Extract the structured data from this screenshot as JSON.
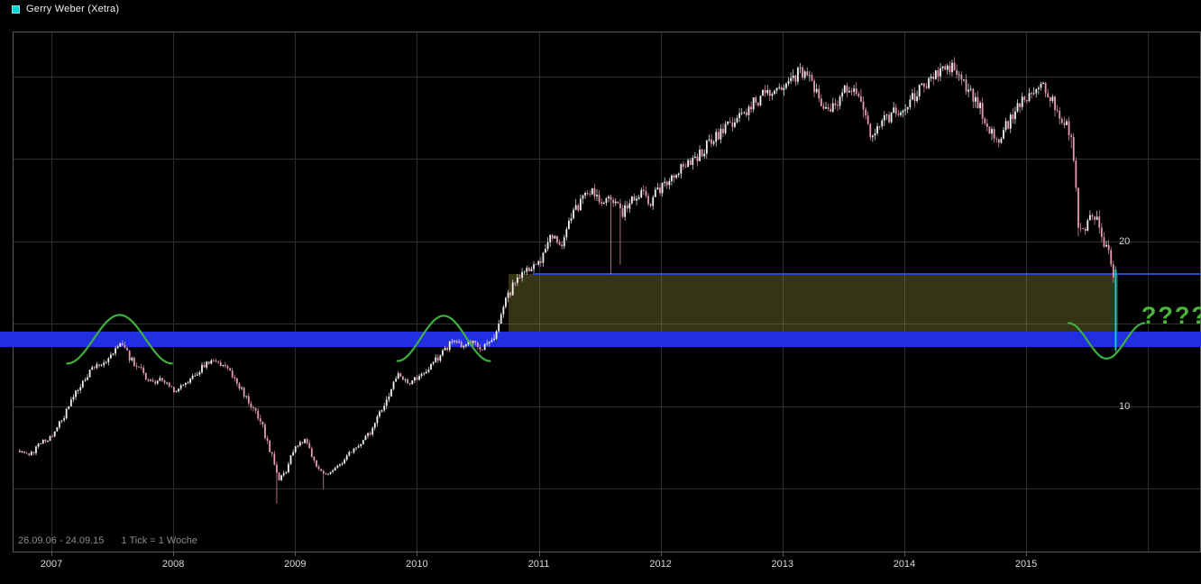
{
  "legend": {
    "label": "Gerry Weber (Xetra)",
    "marker_color": "#00d9d9"
  },
  "footer": {
    "range_text": "26.09.06 - 24.09.15",
    "tick_text": "1 Tick = 1 Woche"
  },
  "chart_data": {
    "type": "candlestick",
    "title": "Gerry Weber (Xetra)",
    "series_name": "Gerry Weber (Xetra)",
    "x_unit": "year",
    "tick_interval": "1 week",
    "x_domain": [
      2006.682,
      2016.435
    ],
    "y_domain": [
      1.2,
      32.73
    ],
    "x_ticks": [
      2007,
      2008,
      2009,
      2010,
      2011,
      2012,
      2013,
      2014,
      2015
    ],
    "x_gridlines": [
      2007,
      2008,
      2009,
      2010,
      2011,
      2012,
      2013,
      2014,
      2015,
      2016
    ],
    "y_gridlines": [
      5,
      10,
      15,
      20,
      25,
      30
    ],
    "y_tick_labels": [
      {
        "price": 20,
        "label": "20"
      },
      {
        "price": 10,
        "label": "10"
      }
    ],
    "weeks": 470,
    "t_first": 2006.74,
    "t_last": 2015.735,
    "anchors": [
      [
        2006.74,
        7.3
      ],
      [
        2006.82,
        7.0
      ],
      [
        2006.92,
        7.8
      ],
      [
        2007.0,
        8.1
      ],
      [
        2007.1,
        9.3
      ],
      [
        2007.22,
        11.0
      ],
      [
        2007.32,
        12.2
      ],
      [
        2007.45,
        12.8
      ],
      [
        2007.56,
        13.8
      ],
      [
        2007.62,
        13.2
      ],
      [
        2007.72,
        12.3
      ],
      [
        2007.82,
        11.4
      ],
      [
        2007.92,
        11.7
      ],
      [
        2008.0,
        10.9
      ],
      [
        2008.1,
        11.3
      ],
      [
        2008.22,
        12.3
      ],
      [
        2008.32,
        12.9
      ],
      [
        2008.42,
        12.4
      ],
      [
        2008.52,
        11.6
      ],
      [
        2008.62,
        10.3
      ],
      [
        2008.72,
        9.0
      ],
      [
        2008.8,
        7.2
      ],
      [
        2008.87,
        5.6
      ],
      [
        2008.93,
        6.2
      ],
      [
        2009.0,
        7.6
      ],
      [
        2009.08,
        7.9
      ],
      [
        2009.16,
        6.6
      ],
      [
        2009.24,
        5.9
      ],
      [
        2009.32,
        6.1
      ],
      [
        2009.42,
        7.0
      ],
      [
        2009.52,
        7.6
      ],
      [
        2009.62,
        8.4
      ],
      [
        2009.7,
        9.8
      ],
      [
        2009.78,
        11.0
      ],
      [
        2009.85,
        12.0
      ],
      [
        2009.93,
        11.4
      ],
      [
        2010.02,
        11.9
      ],
      [
        2010.12,
        12.5
      ],
      [
        2010.22,
        13.3
      ],
      [
        2010.3,
        14.0
      ],
      [
        2010.38,
        13.6
      ],
      [
        2010.46,
        13.9
      ],
      [
        2010.54,
        13.5
      ],
      [
        2010.62,
        14.1
      ],
      [
        2010.7,
        15.8
      ],
      [
        2010.78,
        17.2
      ],
      [
        2010.86,
        18.0
      ],
      [
        2010.94,
        18.4
      ],
      [
        2011.02,
        19.0
      ],
      [
        2011.1,
        20.3
      ],
      [
        2011.18,
        19.8
      ],
      [
        2011.28,
        21.5
      ],
      [
        2011.36,
        22.8
      ],
      [
        2011.44,
        23.1
      ],
      [
        2011.52,
        22.2
      ],
      [
        2011.6,
        22.6
      ],
      [
        2011.68,
        21.6
      ],
      [
        2011.76,
        22.4
      ],
      [
        2011.84,
        23.0
      ],
      [
        2011.92,
        22.4
      ],
      [
        2012.0,
        23.3
      ],
      [
        2012.1,
        23.8
      ],
      [
        2012.2,
        24.6
      ],
      [
        2012.3,
        25.2
      ],
      [
        2012.4,
        26.0
      ],
      [
        2012.5,
        26.6
      ],
      [
        2012.6,
        27.3
      ],
      [
        2012.7,
        28.0
      ],
      [
        2012.8,
        28.6
      ],
      [
        2012.9,
        29.2
      ],
      [
        2013.0,
        29.0
      ],
      [
        2013.08,
        29.8
      ],
      [
        2013.15,
        30.3
      ],
      [
        2013.22,
        29.9
      ],
      [
        2013.3,
        28.6
      ],
      [
        2013.38,
        27.9
      ],
      [
        2013.46,
        28.6
      ],
      [
        2013.54,
        29.3
      ],
      [
        2013.62,
        28.9
      ],
      [
        2013.72,
        26.5
      ],
      [
        2013.8,
        27.0
      ],
      [
        2013.88,
        27.6
      ],
      [
        2013.96,
        28.1
      ],
      [
        2014.04,
        28.5
      ],
      [
        2014.12,
        29.2
      ],
      [
        2014.2,
        29.8
      ],
      [
        2014.28,
        30.3
      ],
      [
        2014.36,
        30.7
      ],
      [
        2014.44,
        30.2
      ],
      [
        2014.52,
        29.4
      ],
      [
        2014.6,
        28.4
      ],
      [
        2014.68,
        27.2
      ],
      [
        2014.76,
        26.1
      ],
      [
        2014.84,
        27.1
      ],
      [
        2014.92,
        28.0
      ],
      [
        2015.0,
        28.7
      ],
      [
        2015.08,
        29.1
      ],
      [
        2015.15,
        29.4
      ],
      [
        2015.22,
        28.3
      ],
      [
        2015.3,
        27.4
      ],
      [
        2015.38,
        26.4
      ],
      [
        2015.42,
        21.4
      ],
      [
        2015.48,
        20.8
      ],
      [
        2015.54,
        21.7
      ],
      [
        2015.6,
        20.9
      ],
      [
        2015.65,
        19.6
      ],
      [
        2015.7,
        19.0
      ],
      [
        2015.715,
        18.3
      ],
      [
        2015.735,
        13.4
      ]
    ],
    "long_wicks": [
      {
        "t": 2008.85,
        "low": 4.1
      },
      {
        "t": 2009.24,
        "low": 5.0
      },
      {
        "t": 2011.585,
        "low": 18.0
      },
      {
        "t": 2011.66,
        "low": 18.6
      }
    ],
    "last_candle": {
      "open": 18.3,
      "close": 13.4,
      "high": 18.5,
      "low": 13.3
    },
    "colors": {
      "up": "#f2f2f2",
      "down": "#e79ab0",
      "last": "#00d9d9",
      "grid": "#2e2e2e",
      "frame": "#5a5a5a",
      "band": "#212fe0",
      "zone_fill": "rgba(168,162,70,0.32)",
      "neckline": "#2c49cc",
      "arc": "#3eb03e",
      "question": "#4ab63a"
    },
    "annotations": {
      "support_band": {
        "price_top": 14.55,
        "price_bottom": 13.6
      },
      "breakout_zone": {
        "t_start": 2010.75,
        "t_end": 2015.755,
        "price_top": 18.05,
        "price_bottom": 14.55
      },
      "neckline": {
        "price": 18.05,
        "t_start": 2010.95,
        "to_right_edge": true
      },
      "arcs": [
        {
          "t_start": 2007.13,
          "t_end": 2007.99,
          "edge_price": 12.6,
          "mid_price": 15.55
        },
        {
          "t_start": 2009.84,
          "t_end": 2010.6,
          "edge_price": 12.75,
          "mid_price": 15.5
        },
        {
          "t_start": 2015.35,
          "t_end": 2015.97,
          "edge_price": 15.05,
          "mid_price": 12.9
        }
      ],
      "question": {
        "text": "????",
        "t": 2015.99,
        "price": 15.3
      }
    }
  }
}
